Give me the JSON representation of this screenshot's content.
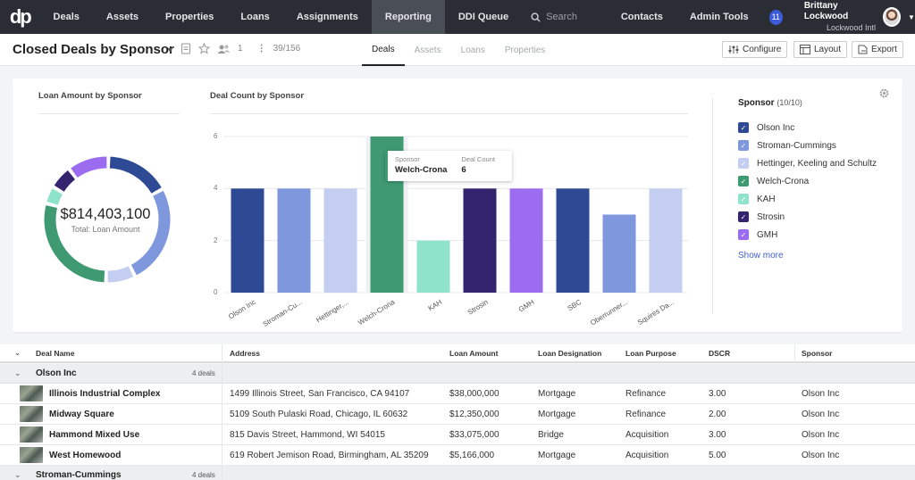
{
  "nav": {
    "logo": "dp",
    "items": [
      {
        "label": "Deals",
        "active": false
      },
      {
        "label": "Assets",
        "active": false
      },
      {
        "label": "Properties",
        "active": false
      },
      {
        "label": "Loans",
        "active": false
      },
      {
        "label": "Assignments",
        "active": false
      },
      {
        "label": "Reporting",
        "active": true
      },
      {
        "label": "DDI Queue",
        "active": false
      }
    ],
    "search_placeholder": "Search",
    "right_items": [
      "Contacts",
      "Admin Tools"
    ],
    "notification_count": "11",
    "user_name": "Brittany Lockwood",
    "user_org": "Lockwood Intl"
  },
  "subheader": {
    "title": "Closed Deals by Sponsor",
    "shared_count": "1",
    "record_count": "39/156",
    "tabs": [
      {
        "label": "Deals",
        "active": true
      },
      {
        "label": "Assets",
        "active": false
      },
      {
        "label": "Loans",
        "active": false
      },
      {
        "label": "Properties",
        "active": false
      }
    ],
    "configure_label": "Configure",
    "layout_label": "Layout",
    "export_label": "Export"
  },
  "colors": {
    "Olson Inc": "#2f4a94",
    "Stroman-Cummings": "#7e97dd",
    "Hettinger, Keeling and Schultz": "#c3cef0",
    "Welch-Crona": "#3f9a72",
    "KAH": "#8fe3cb",
    "Strosin": "#34236e",
    "GMH": "#9b6cf0",
    "Oberbrunner": "#7e97dd",
    "Squires": "#c3cef0"
  },
  "donut": {
    "title": "Loan Amount by Sponsor",
    "total": "$814,403,100",
    "total_label": "Total: Loan Amount"
  },
  "chart_data": [
    {
      "type": "pie",
      "title": "Loan Amount by Sponsor",
      "categories": [
        "Olson Inc",
        "Stroman-Cummings",
        "Hettinger, Keeling and Schultz",
        "Welch-Crona",
        "KAH",
        "Strosin",
        "GMH"
      ],
      "values": [
        11,
        17,
        5,
        19,
        3,
        4,
        7
      ],
      "values_note_free": true
    },
    {
      "type": "bar",
      "title": "Deal Count by Sponsor",
      "categories": [
        "Olson Inc",
        "Stroman-Cu...",
        "Hettinger,...",
        "Welch-Crona",
        "KAH",
        "Strosin",
        "GMH",
        "SBC",
        "Oberrunner...",
        "Squires Da..."
      ],
      "values": [
        4,
        4,
        4,
        6,
        2,
        4,
        4,
        4,
        3,
        4
      ],
      "ylim": [
        0,
        6
      ],
      "yticks": [
        "0",
        "2",
        "4",
        "6"
      ],
      "tooltip": {
        "sponsor_label": "Sponsor",
        "sponsor_value": "Welch-Crona",
        "count_label": "Deal Count",
        "count_value": "6"
      }
    }
  ],
  "legend": {
    "title": "Sponsor",
    "count": "(10/10)",
    "items": [
      "Olson Inc",
      "Stroman-Cummings",
      "Hettinger, Keeling and Schultz",
      "Welch-Crona",
      "KAH",
      "Strosin",
      "GMH"
    ],
    "show_more": "Show more"
  },
  "table": {
    "columns": [
      "Deal Name",
      "Address",
      "Loan Amount",
      "Loan Designation",
      "Loan Purpose",
      "DSCR",
      "Sponsor"
    ],
    "groups": [
      {
        "name": "Olson Inc",
        "count": "4 deals",
        "rows": [
          [
            "Illinois Industrial Complex",
            "1499 Illinois Street, San Francisco, CA 94107",
            "$38,000,000",
            "Mortgage",
            "Refinance",
            "3.00",
            "Olson Inc"
          ],
          [
            "Midway Square",
            "5109 South Pulaski Road, Chicago, IL 60632",
            "$12,350,000",
            "Mortgage",
            "Refinance",
            "2.00",
            "Olson Inc"
          ],
          [
            "Hammond Mixed Use",
            "815 Davis Street, Hammond, WI 54015",
            "$33,075,000",
            "Bridge",
            "Acquisition",
            "3.00",
            "Olson Inc"
          ],
          [
            "West Homewood",
            "619 Robert Jemison Road, Birmingham, AL 35209",
            "$5,166,000",
            "Mortgage",
            "Acquisition",
            "5.00",
            "Olson Inc"
          ]
        ]
      },
      {
        "name": "Stroman-Cummings",
        "count": "4 deals",
        "rows": []
      }
    ]
  }
}
